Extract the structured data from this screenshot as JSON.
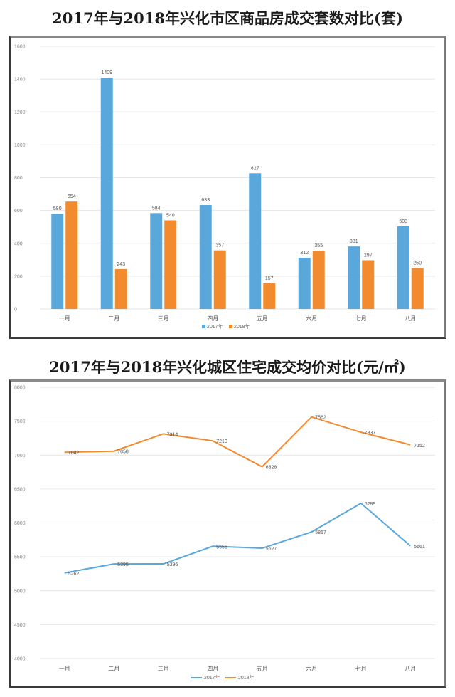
{
  "colors": {
    "s2017": "#5aa7dc",
    "s2018": "#f28a2e",
    "grid": "#e6e6e6"
  },
  "chart_data": [
    {
      "type": "bar",
      "title": "2017年与2018年兴化市区商品房成交套数对比(套)",
      "categories": [
        "一月",
        "二月",
        "三月",
        "四月",
        "五月",
        "六月",
        "七月",
        "八月"
      ],
      "series": [
        {
          "name": "2017年",
          "values": [
            580,
            1409,
            584,
            633,
            827,
            312,
            381,
            503
          ]
        },
        {
          "name": "2018年",
          "values": [
            654,
            243,
            540,
            357,
            157,
            355,
            297,
            250
          ]
        }
      ],
      "ylim": [
        0,
        1600
      ],
      "yticks": [
        0,
        200,
        400,
        600,
        800,
        1000,
        1200,
        1400,
        1600
      ],
      "xlabel": "",
      "ylabel": "",
      "grid": true,
      "legend": "bottom"
    },
    {
      "type": "line",
      "title": "2017年与2018年兴化城区住宅成交均价对比(元/㎡)",
      "categories": [
        "一月",
        "二月",
        "三月",
        "四月",
        "五月",
        "六月",
        "七月",
        "八月"
      ],
      "series": [
        {
          "name": "2017年",
          "values": [
            5262,
            5395,
            5396,
            5656,
            5627,
            5867,
            6289,
            5661
          ]
        },
        {
          "name": "2018年",
          "values": [
            7042,
            7058,
            7314,
            7210,
            6828,
            7562,
            7337,
            7152
          ]
        }
      ],
      "ylim": [
        4000,
        8000
      ],
      "yticks": [
        4000,
        4500,
        5000,
        5500,
        6000,
        6500,
        7000,
        7500,
        8000
      ],
      "xlabel": "",
      "ylabel": "",
      "grid": true,
      "legend": "bottom"
    }
  ]
}
